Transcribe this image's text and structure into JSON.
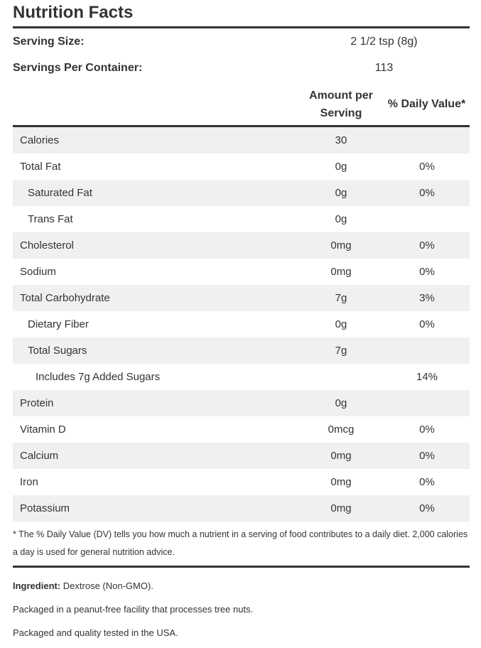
{
  "title": "Nutrition Facts",
  "serving": {
    "size_label": "Serving Size:",
    "size_value": "2 1/2 tsp (8g)",
    "per_container_label": "Servings Per Container:",
    "per_container_value": "113"
  },
  "columns": {
    "amount_line1": "Amount per",
    "amount_line2": "Serving",
    "daily_value": "% Daily Value*"
  },
  "nutrients": [
    {
      "name": "Calories",
      "amount": "30",
      "dv": "",
      "indent": 0
    },
    {
      "name": "Total Fat",
      "amount": "0g",
      "dv": "0%",
      "indent": 0
    },
    {
      "name": "Saturated Fat",
      "amount": "0g",
      "dv": "0%",
      "indent": 1
    },
    {
      "name": "Trans Fat",
      "amount": "0g",
      "dv": "",
      "indent": 1
    },
    {
      "name": "Cholesterol",
      "amount": "0mg",
      "dv": "0%",
      "indent": 0
    },
    {
      "name": "Sodium",
      "amount": "0mg",
      "dv": "0%",
      "indent": 0
    },
    {
      "name": "Total Carbohydrate",
      "amount": "7g",
      "dv": "3%",
      "indent": 0
    },
    {
      "name": "Dietary Fiber",
      "amount": "0g",
      "dv": "0%",
      "indent": 1
    },
    {
      "name": "Total Sugars",
      "amount": "7g",
      "dv": "",
      "indent": 1
    },
    {
      "name": "Includes 7g Added Sugars",
      "amount": "",
      "dv": "14%",
      "indent": 2
    },
    {
      "name": "Protein",
      "amount": "0g",
      "dv": "",
      "indent": 0
    },
    {
      "name": "Vitamin D",
      "amount": "0mcg",
      "dv": "0%",
      "indent": 0
    },
    {
      "name": "Calcium",
      "amount": "0mg",
      "dv": "0%",
      "indent": 0
    },
    {
      "name": "Iron",
      "amount": "0mg",
      "dv": "0%",
      "indent": 0
    },
    {
      "name": "Potassium",
      "amount": "0mg",
      "dv": "0%",
      "indent": 0
    }
  ],
  "footnote": "* The % Daily Value (DV) tells you how much a nutrient in a serving of food contributes to a daily diet. 2,000 calories a day is used for general nutrition advice.",
  "ingredients": {
    "label": "Ingredient:",
    "value": "Dextrose (Non-GMO).",
    "note1": "Packaged in a peanut-free facility that processes tree nuts.",
    "note2": "Packaged and quality tested in the USA."
  }
}
